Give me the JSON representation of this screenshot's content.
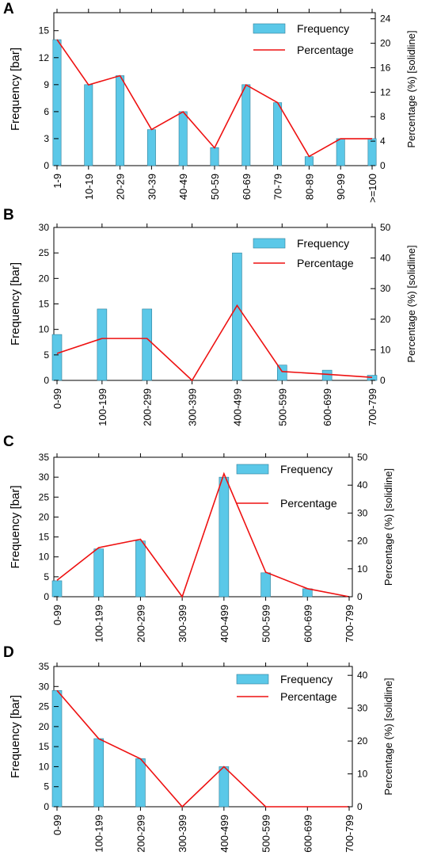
{
  "colors": {
    "bar": "#5bc8e8",
    "bar_edge": "#2f7f99",
    "line": "#ee1111",
    "axis": "#000000"
  },
  "chart_data": [
    {
      "panel": "A",
      "type": "bar",
      "categories": [
        "1-9",
        "10-19",
        "20-29",
        "30-39",
        "40-49",
        "50-59",
        "60-69",
        "70-79",
        "80-89",
        "90-99",
        ">=100"
      ],
      "series": [
        {
          "name": "Frequency",
          "type": "bar",
          "axis": "left",
          "values": [
            14,
            9,
            10,
            4,
            6,
            2,
            9,
            7,
            1,
            3,
            3
          ]
        },
        {
          "name": "Percentage",
          "type": "line",
          "axis": "right",
          "values": [
            20.6,
            13.2,
            14.7,
            5.9,
            8.8,
            2.9,
            13.2,
            10.3,
            1.5,
            4.4,
            4.4
          ]
        }
      ],
      "ylabel": "Frequency [bar]",
      "y2label": "Percentage (%) [solidline]",
      "ylim": [
        0,
        17
      ],
      "yticks": [
        "0",
        "3",
        "6",
        "9",
        "12",
        "15"
      ],
      "y2lim": [
        0,
        25
      ],
      "y2ticks": [
        "0",
        "4",
        "8",
        "12",
        "16",
        "20",
        "24"
      ],
      "legend": "top-right"
    },
    {
      "panel": "B",
      "type": "bar",
      "categories": [
        "0-99",
        "100-199",
        "200-299",
        "300-399",
        "400-499",
        "500-599",
        "600-699",
        "700-799"
      ],
      "series": [
        {
          "name": "Frequency",
          "type": "bar",
          "axis": "left",
          "values": [
            9,
            14,
            14,
            0,
            25,
            3,
            2,
            1
          ]
        },
        {
          "name": "Percentage",
          "type": "line",
          "axis": "right",
          "values": [
            8.8,
            13.7,
            13.7,
            0,
            24.5,
            2.9,
            2.0,
            1.0
          ]
        }
      ],
      "ylabel": "Frequency [bar]",
      "y2label": "Percentage (%) [solidline]",
      "ylim": [
        0,
        30
      ],
      "yticks": [
        "0",
        "5",
        "10",
        "15",
        "20",
        "25",
        "30"
      ],
      "y2lim": [
        0,
        50
      ],
      "y2ticks": [
        "0",
        "10",
        "20",
        "30",
        "40",
        "50"
      ],
      "legend": "top-right"
    },
    {
      "panel": "C",
      "type": "bar",
      "categories": [
        "0-99",
        "100-199",
        "200-299",
        "300-399",
        "400-499",
        "500-599",
        "600-699",
        "700-799"
      ],
      "series": [
        {
          "name": "Frequency",
          "type": "bar",
          "axis": "left",
          "values": [
            4,
            12,
            14,
            0,
            30,
            6,
            2,
            0
          ]
        },
        {
          "name": "Percentage",
          "type": "line",
          "axis": "right",
          "values": [
            5.9,
            17.6,
            20.6,
            0,
            44.1,
            8.8,
            2.9,
            0
          ]
        }
      ],
      "ylabel": "Frequency [bar]",
      "y2label": "Percentage (%) [solidline]",
      "ylim": [
        0,
        35
      ],
      "yticks": [
        "0",
        "5",
        "10",
        "15",
        "20",
        "25",
        "30",
        "35"
      ],
      "y2lim": [
        0,
        50
      ],
      "y2ticks": [
        "0",
        "10",
        "20",
        "30",
        "40",
        "50"
      ],
      "legend": "top-right"
    },
    {
      "panel": "D",
      "type": "bar",
      "categories": [
        "0-99",
        "100-199",
        "200-299",
        "300-399",
        "400-499",
        "500-599",
        "600-699",
        "700-799"
      ],
      "series": [
        {
          "name": "Frequency",
          "type": "bar",
          "axis": "left",
          "values": [
            29,
            17,
            12,
            0,
            10,
            0,
            0,
            0
          ]
        },
        {
          "name": "Percentage",
          "type": "line",
          "axis": "right",
          "values": [
            35.4,
            20.7,
            14.6,
            0,
            12.2,
            0,
            0,
            0
          ]
        }
      ],
      "ylabel": "Frequency [bar]",
      "y2label": "Percentage (%) [solidline]",
      "ylim": [
        0,
        35
      ],
      "yticks": [
        "0",
        "5",
        "10",
        "15",
        "20",
        "25",
        "30",
        "35"
      ],
      "y2lim": [
        0,
        42.7
      ],
      "y2ticks": [
        "0",
        "10",
        "20",
        "30",
        "40"
      ],
      "legend": "top-right"
    }
  ]
}
